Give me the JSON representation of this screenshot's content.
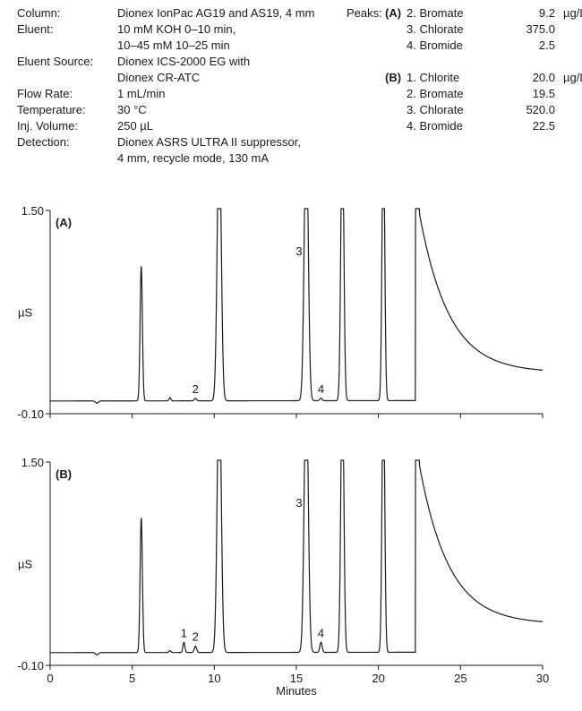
{
  "conditions": [
    {
      "label": "Column:",
      "value": "Dionex IonPac AG19 and AS19, 4 mm"
    },
    {
      "label": "Eluent:",
      "value": "10 mM KOH 0–10 min,"
    },
    {
      "label": "",
      "value": "10–45 mM 10–25 min"
    },
    {
      "label": "Eluent Source:",
      "value": "Dionex ICS-2000 EG with"
    },
    {
      "label": "",
      "value": "Dionex CR-ATC"
    },
    {
      "label": "Flow Rate:",
      "value": "1 mL/min"
    },
    {
      "label": "Temperature:",
      "value": "30 °C"
    },
    {
      "label": "Inj. Volume:",
      "value": "250 µL"
    },
    {
      "label": "Detection:",
      "value": "Dionex ASRS ULTRA II suppressor,"
    },
    {
      "label": "",
      "value": "4 mm, recycle mode, 130 mA"
    }
  ],
  "peaks": {
    "header": "Peaks:",
    "groups": [
      {
        "label": "(A)",
        "items": [
          {
            "name": "2. Bromate",
            "value": "9.2",
            "unit": "µg/L"
          },
          {
            "name": "3. Chlorate",
            "value": "375.0",
            "unit": ""
          },
          {
            "name": "4. Bromide",
            "value": "2.5",
            "unit": ""
          }
        ]
      },
      {
        "label": "(B)",
        "items": [
          {
            "name": "1. Chlorite",
            "value": "20.0",
            "unit": "µg/L"
          },
          {
            "name": "2. Bromate",
            "value": "19.5",
            "unit": ""
          },
          {
            "name": "3. Chlorate",
            "value": "520.0",
            "unit": ""
          },
          {
            "name": "4. Bromide",
            "value": "22.5",
            "unit": ""
          }
        ]
      }
    ]
  },
  "chart_data": [
    {
      "type": "line",
      "panel_label": "(A)",
      "ylabel": "µS",
      "ylim": [
        -0.1,
        1.5
      ],
      "ytick_labels": [
        "1.50",
        "-0.10"
      ],
      "xlim": [
        0,
        30
      ],
      "baseline": 0.0,
      "tail": {
        "start": 22.5,
        "end": 30,
        "amplitude": 1.25,
        "plateau": 0.22,
        "tau": 1.8
      },
      "peaks": [
        {
          "label": "",
          "time": 5.55,
          "height": 1.06,
          "width": 0.07
        },
        {
          "label": "",
          "time": 7.3,
          "height": 0.025,
          "width": 0.06
        },
        {
          "label": "2",
          "time": 8.85,
          "height": 0.02,
          "width": 0.07
        },
        {
          "label": "",
          "time": 10.3,
          "height": 2.2,
          "width": 0.12
        },
        {
          "label": "3",
          "time": 15.6,
          "height": 2.2,
          "width": 0.12
        },
        {
          "label": "4",
          "time": 16.5,
          "height": 0.02,
          "width": 0.07
        },
        {
          "label": "",
          "time": 17.8,
          "height": 2.2,
          "width": 0.09
        },
        {
          "label": "",
          "time": 20.3,
          "height": 2.2,
          "width": 0.08
        }
      ]
    },
    {
      "type": "line",
      "panel_label": "(B)",
      "ylabel": "µS",
      "ylim": [
        -0.1,
        1.5
      ],
      "ytick_labels": [
        "1.50",
        "-0.10"
      ],
      "xlim": [
        0,
        30
      ],
      "xlabel": "Minutes",
      "xticks": [
        0,
        5,
        10,
        15,
        20,
        25,
        30
      ],
      "xtick_labels": [
        "0",
        "5",
        "10",
        "15",
        "20",
        "25",
        "30"
      ],
      "baseline": 0.0,
      "tail": {
        "start": 22.5,
        "end": 30,
        "amplitude": 1.25,
        "plateau": 0.22,
        "tau": 1.8
      },
      "peaks": [
        {
          "label": "",
          "time": 5.55,
          "height": 1.06,
          "width": 0.07
        },
        {
          "label": "",
          "time": 7.3,
          "height": 0.015,
          "width": 0.06
        },
        {
          "label": "1",
          "time": 8.15,
          "height": 0.08,
          "width": 0.06
        },
        {
          "label": "2",
          "time": 8.85,
          "height": 0.05,
          "width": 0.07
        },
        {
          "label": "",
          "time": 10.3,
          "height": 2.2,
          "width": 0.12
        },
        {
          "label": "3",
          "time": 15.6,
          "height": 2.2,
          "width": 0.12
        },
        {
          "label": "4",
          "time": 16.5,
          "height": 0.08,
          "width": 0.07
        },
        {
          "label": "",
          "time": 17.8,
          "height": 2.2,
          "width": 0.09
        },
        {
          "label": "",
          "time": 20.3,
          "height": 2.2,
          "width": 0.08
        }
      ]
    }
  ]
}
